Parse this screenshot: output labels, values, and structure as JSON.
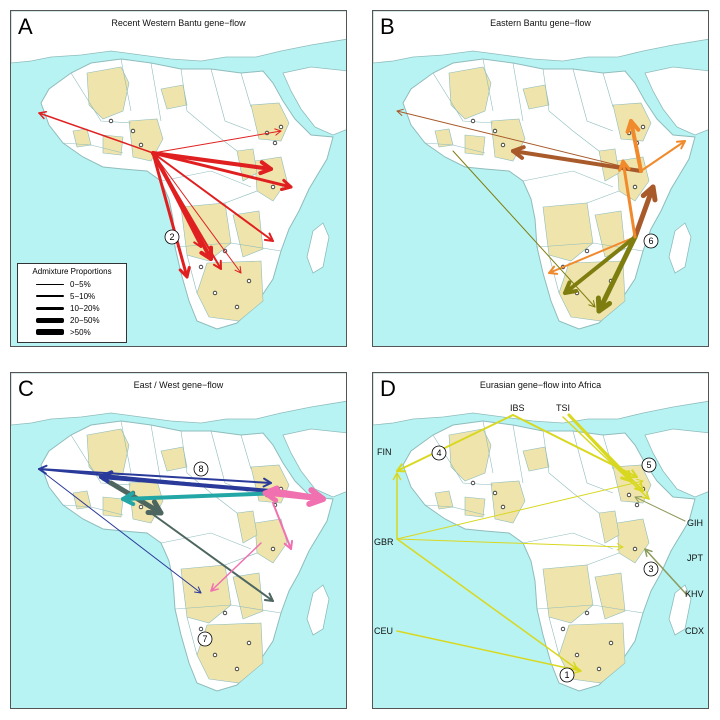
{
  "colors": {
    "ocean": "#b8f3f3",
    "land": "#ffffff",
    "sampled_country": "#efe4ab",
    "border": "#8fbcbc",
    "western_bantu": "#e02020",
    "eastern_bantu_orange": "#f08a2c",
    "eastern_bantu_brown": "#a85a2a",
    "eastern_bantu_olive": "#7e7e10",
    "east_west_blue": "#2a3a9a",
    "east_west_pink": "#f070b0",
    "east_west_teal": "#23a6a6",
    "east_west_slate": "#4e6660",
    "eurasian_yellow": "#d8d820",
    "eurasian_olive": "#8a9a5a"
  },
  "panels": [
    {
      "letter": "A",
      "title": "Recent Western Bantu gene−flow"
    },
    {
      "letter": "B",
      "title": "Eastern Bantu gene−flow"
    },
    {
      "letter": "C",
      "title": "East / West gene−flow"
    },
    {
      "letter": "D",
      "title": "Eurasian gene−flow into Africa"
    }
  ],
  "legend": {
    "title": "Admixture Proportions",
    "items": [
      "0−5%",
      "5−10%",
      "10−20%",
      "20−50%",
      ">50%"
    ]
  },
  "numbered_markers": {
    "A": [
      "2"
    ],
    "B": [
      "6"
    ],
    "C": [
      "8",
      "7"
    ],
    "D": [
      "4",
      "5",
      "3",
      "1"
    ]
  },
  "panel_d_labels": [
    "FIN",
    "IBS",
    "TSI",
    "GBR",
    "CEU",
    "GIH",
    "JPT",
    "KHV",
    "CDX"
  ]
}
